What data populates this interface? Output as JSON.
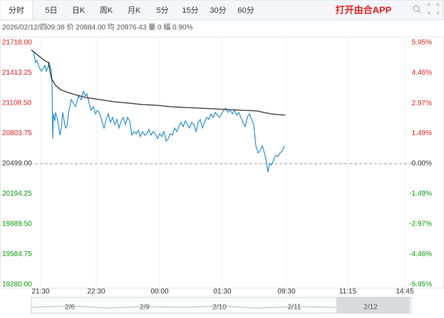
{
  "header": {
    "tabs": [
      "分时",
      "5日",
      "日K",
      "周K",
      "月K",
      "5分",
      "15分",
      "30分",
      "60分"
    ],
    "app_link": "打开由合APP"
  },
  "chart_data": {
    "type": "line",
    "info": "2026/02/12/四09:38 价 20884.00 均 20976.43 量 0 幅 0.90%",
    "xlim": [
      0,
      540
    ],
    "xticks": [
      {
        "value": 15,
        "label": "21:30"
      },
      {
        "value": 93,
        "label": "22:30"
      },
      {
        "value": 182,
        "label": "00:00"
      },
      {
        "value": 270,
        "label": "01:30"
      },
      {
        "value": 360,
        "label": "09:30"
      },
      {
        "value": 446,
        "label": "11:15"
      },
      {
        "value": 526,
        "label": "14:45"
      }
    ],
    "ylim": [
      19280,
      21718
    ],
    "yticks": [
      {
        "value": 21718,
        "label": "21718.00"
      },
      {
        "value": 21413.25,
        "label": "21413.25"
      },
      {
        "value": 21108.5,
        "label": "21108.50"
      },
      {
        "value": 20803.75,
        "label": "20803.75"
      },
      {
        "value": 20499,
        "label": "20499.00"
      },
      {
        "value": 20194.25,
        "label": "20194.25"
      },
      {
        "value": 19889.5,
        "label": "19889.50"
      },
      {
        "value": 19584.75,
        "label": "19584.75"
      },
      {
        "value": 19280,
        "label": "19280.00"
      }
    ],
    "y2lim": [
      -5.95,
      5.95
    ],
    "y2ticks": [
      {
        "value": 5.95,
        "label": "5.95%"
      },
      {
        "value": 4.46,
        "label": "4.46%"
      },
      {
        "value": 2.97,
        "label": "2.97%"
      },
      {
        "value": 1.49,
        "label": "1.49%"
      },
      {
        "value": 0,
        "label": "0.00%"
      },
      {
        "value": -1.49,
        "label": "-1.49%"
      },
      {
        "value": -2.97,
        "label": "-2.97%"
      },
      {
        "value": -4.46,
        "label": "-4.46%"
      },
      {
        "value": -5.95,
        "label": "-5.95%"
      }
    ],
    "prev_close": 20499,
    "up_color": "#e0211d",
    "down_color": "#0a9a0a",
    "flat_color": "#333333",
    "grid": true,
    "series": [
      {
        "color": "#2f8fd0",
        "x": [
          2,
          5,
          8,
          10,
          13,
          16,
          18,
          21,
          23,
          25,
          27,
          28,
          30,
          31,
          32,
          33,
          35,
          36,
          38,
          40,
          42,
          44,
          46,
          48,
          50,
          52,
          54,
          56,
          58,
          61,
          64,
          68,
          72,
          75,
          78,
          80,
          83,
          86,
          89,
          92,
          95,
          98,
          101,
          104,
          107,
          110,
          113,
          116,
          119,
          122,
          125,
          128,
          131,
          134,
          137,
          140,
          143,
          146,
          149,
          152,
          155,
          158,
          161,
          164,
          167,
          170,
          173,
          176,
          179,
          182,
          185,
          188,
          191,
          194,
          197,
          200,
          203,
          206,
          209,
          212,
          215,
          218,
          221,
          224,
          227,
          230,
          233,
          236,
          239,
          242,
          245,
          248,
          251,
          254,
          257,
          260,
          263,
          266,
          269,
          272,
          275,
          278,
          281,
          284,
          287,
          290,
          293,
          296,
          299,
          302,
          305,
          308,
          311,
          314,
          317,
          320,
          323,
          326,
          329,
          332,
          334,
          336,
          339,
          342,
          345,
          348,
          351,
          354,
          357
        ],
        "values": [
          21646,
          21625,
          21517,
          21539,
          21467,
          21431,
          21453,
          21489,
          21431,
          21467,
          21517,
          21489,
          21431,
          21324,
          20750,
          21001,
          20929,
          21015,
          20965,
          20893,
          20786,
          20858,
          21015,
          20929,
          20858,
          20872,
          21001,
          21073,
          21144,
          21109,
          21073,
          21180,
          21144,
          21230,
          21180,
          21202,
          21109,
          21037,
          21073,
          21001,
          21037,
          21001,
          20929,
          20858,
          20944,
          21001,
          20915,
          20965,
          20893,
          20944,
          20858,
          20929,
          20965,
          20893,
          20965,
          20929,
          20786,
          20822,
          20800,
          20836,
          20772,
          20822,
          20786,
          20800,
          20843,
          20786,
          20822,
          20800,
          20750,
          20800,
          20772,
          20822,
          20728,
          20750,
          20800,
          20786,
          20858,
          20822,
          20872,
          20915,
          20872,
          20929,
          20893,
          20858,
          20915,
          20893,
          20822,
          20915,
          20944,
          20858,
          20915,
          20965,
          20944,
          21001,
          20965,
          21015,
          20987,
          20965,
          21001,
          21037,
          21058,
          21015,
          21037,
          21001,
          21037,
          20987,
          21015,
          20965,
          20915,
          20872,
          20965,
          21001,
          20944,
          20893,
          20678,
          20607,
          20628,
          20678,
          20607,
          20513,
          20413,
          20499,
          20485,
          20535,
          20585,
          20571,
          20607,
          20628,
          20678
        ]
      },
      {
        "color": "#333333",
        "x": [
          2,
          8,
          14,
          20,
          26,
          30,
          36,
          43,
          53,
          63,
          78,
          98,
          118,
          138,
          158,
          178,
          198,
          218,
          238,
          258,
          278,
          298,
          318,
          328,
          338,
          348,
          358
        ],
        "values": [
          21646,
          21610,
          21575,
          21539,
          21517,
          21359,
          21288,
          21245,
          21216,
          21195,
          21166,
          21144,
          21123,
          21109,
          21094,
          21087,
          21073,
          21065,
          21058,
          21051,
          21044,
          21037,
          21030,
          21015,
          21001,
          20994,
          20987
        ]
      }
    ],
    "navigator": [
      "2/6",
      "2/9",
      "2/10",
      "2/11",
      "2/12"
    ]
  }
}
